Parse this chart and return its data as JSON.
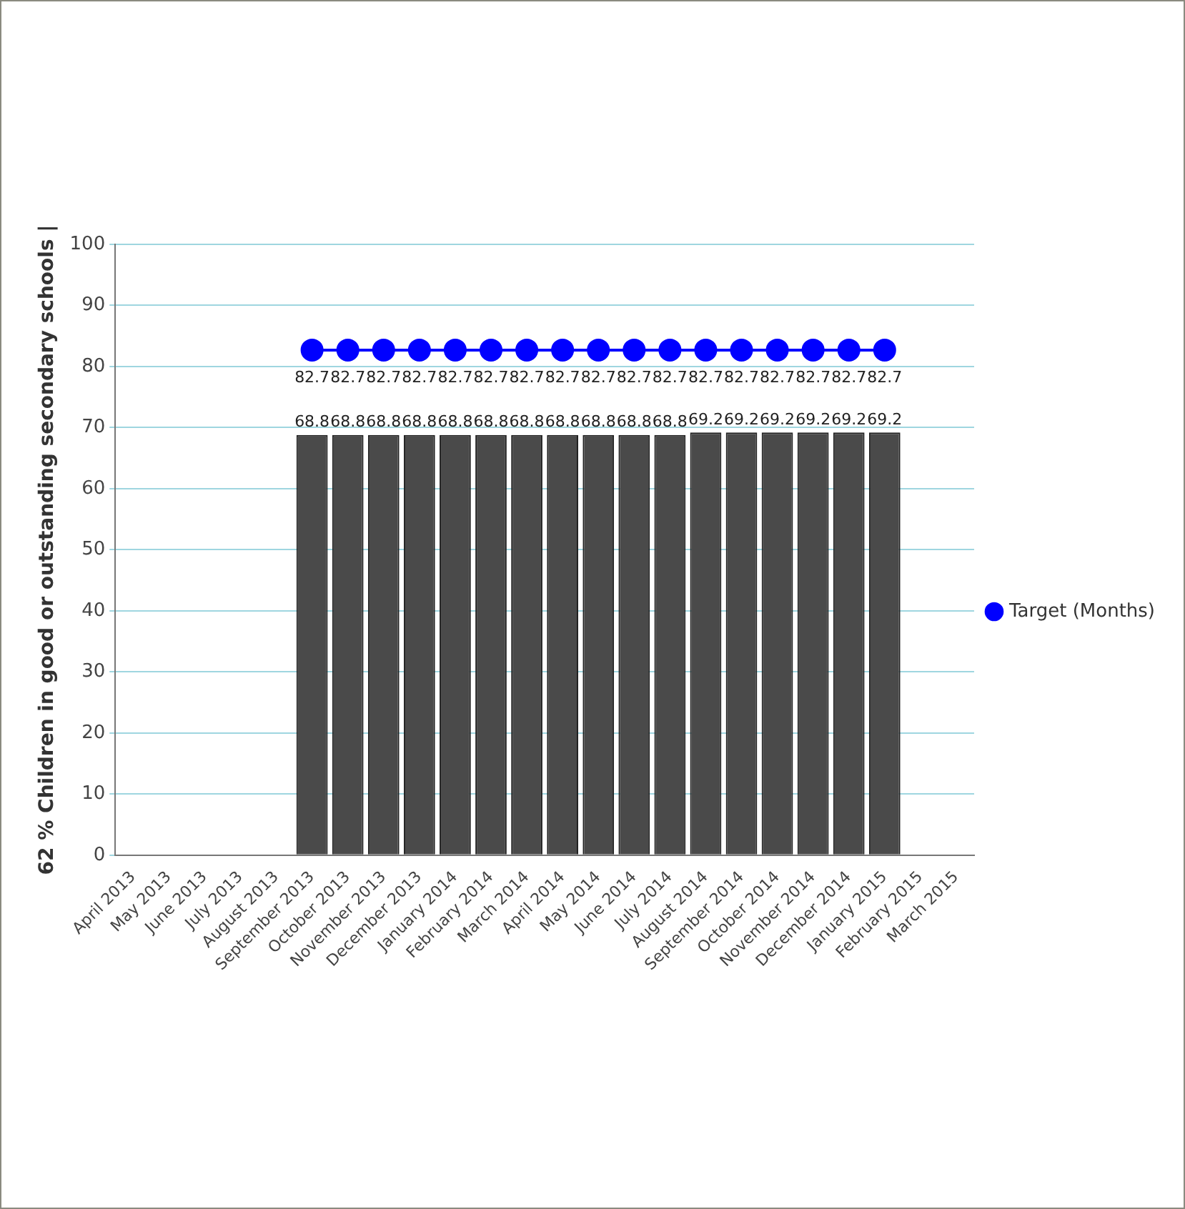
{
  "chart_data": {
    "type": "bar",
    "ylabel": "62 % Children in good or outstanding secondary schools |",
    "categories": [
      "April 2013",
      "May 2013",
      "June 2013",
      "July 2013",
      "August 2013",
      "September 2013",
      "October 2013",
      "November 2013",
      "December 2013",
      "January 2014",
      "February 2014",
      "March 2014",
      "April 2014",
      "May 2014",
      "June 2014",
      "July 2014",
      "August 2014",
      "September 2014",
      "October 2014",
      "November 2014",
      "December 2014",
      "January 2015",
      "February 2015",
      "March 2015"
    ],
    "series": [
      {
        "color": "#4a4a4a",
        "values": [
          null,
          null,
          null,
          null,
          null,
          68.8,
          68.8,
          68.8,
          68.8,
          68.8,
          68.8,
          68.8,
          68.8,
          68.8,
          68.8,
          68.8,
          69.2,
          69.2,
          69.2,
          69.2,
          69.2,
          69.2,
          null,
          null
        ]
      },
      {
        "type": "line",
        "name": "Target (Months)",
        "color": "#0000ff",
        "values": [
          null,
          null,
          null,
          null,
          null,
          82.7,
          82.7,
          82.7,
          82.7,
          82.7,
          82.7,
          82.7,
          82.7,
          82.7,
          82.7,
          82.7,
          82.7,
          82.7,
          82.7,
          82.7,
          82.7,
          82.7,
          null,
          null
        ]
      }
    ],
    "ylim": [
      0,
      100
    ],
    "yticks": [
      0,
      10,
      20,
      30,
      40,
      50,
      60,
      70,
      80,
      90,
      100
    ],
    "grid": "y",
    "legend": "right",
    "marker": "circle",
    "data_labels": true
  }
}
